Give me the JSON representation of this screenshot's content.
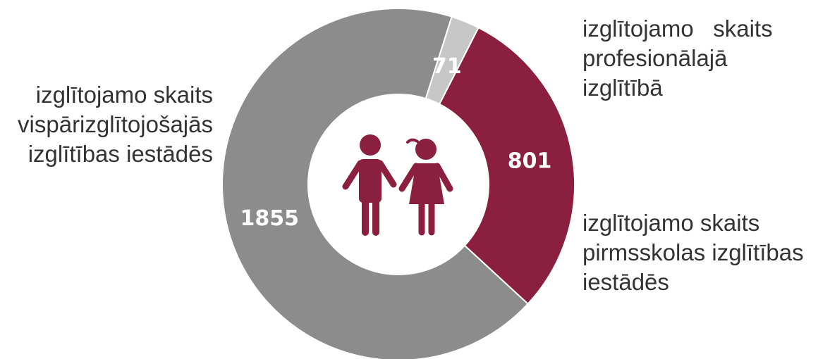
{
  "colors": {
    "general": "#8c8c8c",
    "vocational": "#c7c7c7",
    "preschool": "#8a1f3f",
    "value_text": "#ffffff",
    "icon": "#8a1f3f"
  },
  "icons": [
    "children-icon"
  ],
  "chart_data": {
    "type": "pie",
    "donut": true,
    "categories": [
      "izglītojamo skaits vispārizglītojošajās izglītības iestādēs",
      "izglītojamo skaits profesionālajā izglītībā",
      "izglītojamo skaits pirmsskolas izglītības iestādēs"
    ],
    "values": [
      1855,
      71,
      801
    ],
    "value_labels": [
      "1855",
      "71",
      "801"
    ],
    "legend_lines": [
      [
        "izglītojamo skaits",
        "vispārizglītojošajās",
        "izglītības iestādēs"
      ],
      [
        "izglītojamo   skaits",
        "profesionālajā",
        "izglītībā"
      ],
      [
        "izglītojamo skaits",
        "pirmsskolas izglītības",
        "iestādēs"
      ]
    ],
    "legend_placement": "outside labels"
  }
}
